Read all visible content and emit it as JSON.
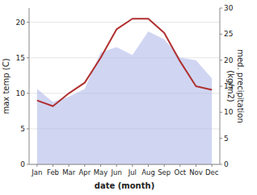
{
  "chart_data": {
    "type": "line",
    "xlabel": "date (month)",
    "ylabel": "max temp (C)",
    "y2label": "med. precipitation\n(kg/m2)",
    "categories": [
      "Jan",
      "Feb",
      "Mar",
      "Apr",
      "May",
      "Jun",
      "Jul",
      "Aug",
      "Sep",
      "Oct",
      "Nov",
      "Dec"
    ],
    "ylim": [
      0,
      22
    ],
    "yticks": [
      0,
      5,
      10,
      15,
      20
    ],
    "y2lim": [
      0,
      30
    ],
    "y2ticks": [
      0,
      5,
      10,
      15,
      20,
      25,
      30
    ],
    "series": [
      {
        "type": "area",
        "axis": "y2",
        "color": "#aab4e8",
        "values": [
          14.5,
          12.0,
          13.0,
          14.5,
          21.5,
          22.5,
          21.0,
          25.5,
          24.0,
          20.5,
          20.0,
          16.5
        ]
      },
      {
        "type": "line",
        "color": "#b03030",
        "values": [
          9.0,
          8.2,
          10.0,
          11.5,
          15.0,
          19.0,
          20.5,
          20.5,
          18.5,
          14.5,
          11.0,
          10.5
        ]
      }
    ]
  }
}
